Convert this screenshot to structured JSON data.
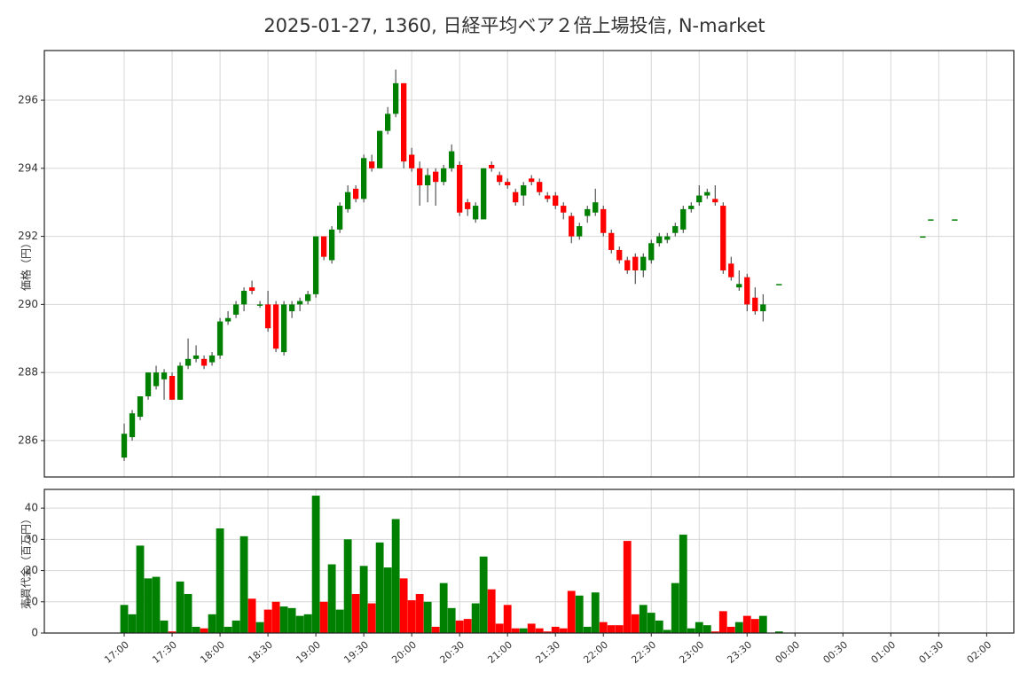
{
  "chart_data": [
    {
      "type": "candlestick",
      "title": "2025-01-27, 1360, 日経平均ベア２倍上場投信, N-market",
      "y_label": "価格（円）",
      "up_color": "#008000",
      "down_color": "#ff0000",
      "x": [
        "17:00",
        "17:05",
        "17:10",
        "17:15",
        "17:20",
        "17:25",
        "17:30",
        "17:35",
        "17:40",
        "17:45",
        "17:50",
        "17:55",
        "18:00",
        "18:05",
        "18:10",
        "18:15",
        "18:20",
        "18:25",
        "18:30",
        "18:35",
        "18:40",
        "18:45",
        "18:50",
        "18:55",
        "19:00",
        "19:05",
        "19:10",
        "19:15",
        "19:20",
        "19:25",
        "19:30",
        "19:35",
        "19:40",
        "19:45",
        "19:50",
        "19:55",
        "20:00",
        "20:05",
        "20:10",
        "20:15",
        "20:20",
        "20:25",
        "20:30",
        "20:35",
        "20:40",
        "20:45",
        "20:50",
        "20:55",
        "21:00",
        "21:05",
        "21:10",
        "21:15",
        "21:20",
        "21:25",
        "21:30",
        "21:35",
        "21:40",
        "21:45",
        "21:50",
        "21:55",
        "22:00",
        "22:05",
        "22:10",
        "22:15",
        "22:20",
        "22:25",
        "22:30",
        "22:35",
        "22:40",
        "22:45",
        "22:50",
        "22:55",
        "23:00",
        "23:05",
        "23:10",
        "23:15",
        "23:20",
        "23:25",
        "23:30",
        "23:35",
        "23:40",
        "23:50",
        "01:20",
        "01:25",
        "01:40"
      ],
      "open": [
        285.5,
        286.1,
        286.7,
        287.3,
        287.6,
        287.8,
        287.9,
        287.2,
        288.2,
        288.4,
        288.4,
        288.3,
        288.5,
        289.5,
        289.7,
        290.0,
        290.5,
        290.0,
        290.0,
        290.0,
        288.6,
        289.8,
        290.0,
        290.1,
        290.3,
        292.0,
        291.3,
        292.2,
        292.8,
        293.4,
        293.1,
        294.2,
        294.0,
        295.1,
        295.6,
        296.5,
        294.4,
        294.0,
        293.5,
        293.9,
        293.6,
        294.0,
        294.1,
        293.0,
        292.5,
        292.5,
        294.1,
        293.8,
        293.6,
        293.3,
        293.2,
        293.7,
        293.6,
        293.2,
        293.2,
        292.9,
        292.6,
        292.0,
        292.6,
        292.7,
        292.8,
        292.1,
        291.6,
        291.3,
        291.4,
        291.0,
        291.3,
        291.8,
        291.9,
        292.1,
        292.2,
        292.8,
        293.0,
        293.2,
        293.1,
        292.9,
        291.2,
        290.5,
        290.8,
        290.2,
        289.8,
        290.6,
        292.0,
        292.5,
        292.5
      ],
      "high": [
        286.5,
        286.9,
        287.3,
        288.0,
        288.2,
        288.1,
        288.0,
        288.3,
        289.0,
        288.8,
        288.5,
        288.6,
        289.6,
        289.8,
        290.1,
        290.5,
        290.7,
        290.1,
        290.4,
        290.1,
        290.1,
        290.1,
        290.2,
        290.4,
        292.0,
        292.0,
        292.3,
        293.0,
        293.5,
        293.5,
        294.4,
        294.4,
        295.1,
        295.8,
        296.9,
        296.5,
        294.6,
        294.2,
        294.0,
        294.0,
        294.1,
        294.7,
        294.2,
        293.1,
        293.0,
        294.0,
        294.2,
        293.9,
        293.7,
        293.4,
        293.6,
        293.8,
        293.7,
        293.3,
        293.3,
        293.0,
        292.7,
        292.4,
        292.9,
        293.4,
        292.9,
        292.2,
        291.7,
        291.4,
        291.5,
        291.5,
        291.9,
        292.1,
        292.1,
        292.4,
        292.9,
        293.0,
        293.5,
        293.4,
        293.5,
        293.0,
        291.4,
        291.0,
        290.9,
        290.5,
        290.3,
        290.6,
        292.0,
        292.5,
        292.5
      ],
      "low": [
        285.4,
        286.0,
        286.6,
        287.2,
        287.5,
        287.2,
        287.2,
        287.2,
        288.1,
        288.3,
        288.1,
        288.2,
        288.4,
        289.4,
        289.6,
        289.8,
        290.3,
        289.9,
        289.2,
        288.6,
        288.5,
        289.6,
        289.8,
        290.0,
        290.2,
        291.3,
        291.2,
        292.1,
        292.7,
        293.0,
        293.0,
        293.9,
        294.0,
        295.0,
        295.5,
        294.0,
        293.9,
        292.9,
        293.0,
        292.9,
        293.5,
        293.9,
        292.6,
        292.6,
        292.4,
        292.5,
        293.9,
        293.5,
        293.4,
        292.9,
        292.9,
        293.5,
        293.2,
        293.0,
        292.8,
        292.5,
        291.8,
        291.9,
        292.4,
        292.6,
        292.0,
        291.5,
        291.2,
        290.9,
        290.6,
        290.8,
        291.2,
        291.7,
        291.8,
        292.0,
        292.1,
        292.7,
        292.9,
        293.1,
        292.9,
        290.9,
        290.7,
        290.4,
        289.8,
        289.7,
        289.5,
        290.6,
        292.0,
        292.5,
        292.5
      ],
      "close": [
        286.2,
        286.8,
        287.3,
        288.0,
        288.0,
        288.0,
        287.2,
        288.2,
        288.4,
        288.5,
        288.2,
        288.5,
        289.5,
        289.6,
        290.0,
        290.4,
        290.4,
        290.0,
        289.3,
        288.7,
        290.0,
        290.0,
        290.1,
        290.3,
        292.0,
        291.4,
        292.2,
        292.9,
        293.3,
        293.1,
        294.3,
        294.0,
        295.1,
        295.6,
        296.5,
        294.2,
        294.0,
        293.5,
        293.8,
        293.6,
        294.0,
        294.5,
        292.7,
        292.8,
        292.9,
        294.0,
        294.0,
        293.6,
        293.5,
        293.0,
        293.5,
        293.6,
        293.3,
        293.1,
        292.9,
        292.7,
        292.0,
        292.3,
        292.8,
        293.0,
        292.1,
        291.6,
        291.3,
        291.0,
        291.0,
        291.4,
        291.8,
        292.0,
        292.0,
        292.3,
        292.8,
        292.9,
        293.2,
        293.3,
        293.0,
        291.0,
        290.8,
        290.6,
        290.0,
        289.8,
        290.0,
        290.6,
        292.0,
        292.5,
        292.5
      ],
      "ylim": [
        284.93,
        297.46
      ],
      "yticks": [
        286,
        288,
        290,
        292,
        294,
        296
      ],
      "grid": true
    },
    {
      "type": "volume",
      "y_label": "売買代金（百万円）",
      "values": [
        9,
        6,
        28,
        17.5,
        18,
        4,
        0.5,
        16.5,
        12.5,
        2,
        1.5,
        6,
        33.5,
        2,
        4,
        31,
        11,
        3.5,
        7.5,
        10,
        8.5,
        8,
        5.5,
        6,
        44,
        10,
        22,
        7.5,
        30,
        12.5,
        21.5,
        9.5,
        29,
        21,
        36.5,
        17.5,
        10.5,
        12.5,
        10,
        2,
        16,
        8,
        4,
        4.5,
        9.5,
        24.5,
        14,
        3,
        9,
        1.5,
        1.5,
        3,
        1.5,
        0.5,
        2,
        1.5,
        13.5,
        12,
        2,
        13,
        3.5,
        2.5,
        2.5,
        29.5,
        6,
        9,
        6.5,
        4,
        1,
        16,
        31.5,
        1.5,
        3.5,
        2.5,
        0.5,
        7,
        2,
        3.5,
        5.5,
        4.5,
        5.5,
        0.5,
        0,
        0,
        0
      ],
      "ylim": [
        0,
        46
      ],
      "yticks": [
        0,
        10,
        20,
        30,
        40
      ],
      "xlim": [
        "16:10",
        "02:17"
      ],
      "xticks": [
        "17:00",
        "17:30",
        "18:00",
        "18:30",
        "19:00",
        "19:30",
        "20:00",
        "20:30",
        "21:00",
        "21:30",
        "22:00",
        "22:30",
        "23:00",
        "23:30",
        "00:00",
        "00:30",
        "01:00",
        "01:30",
        "02:00"
      ],
      "grid": true
    }
  ]
}
